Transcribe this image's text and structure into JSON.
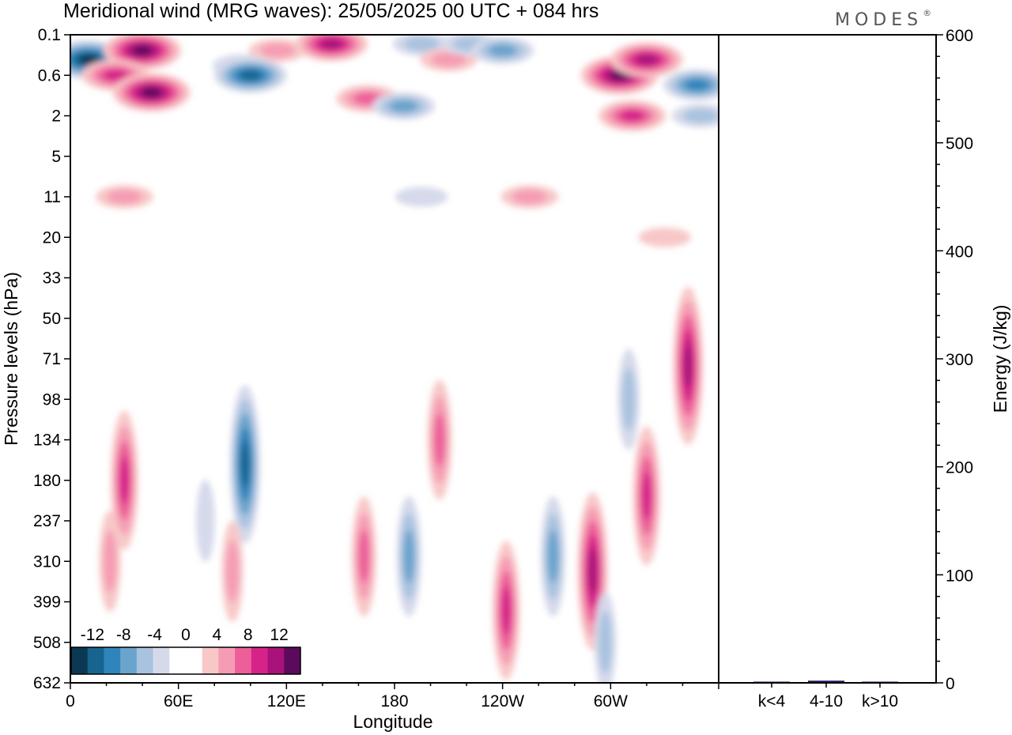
{
  "title": "Meridional wind (MRG waves):  25/05/2025  00 UTC  + 084 hrs",
  "brand": "MODES",
  "brand_mark": "®",
  "colors": {
    "neg12": "#0b3954",
    "neg10": "#17658f",
    "neg8": "#2f84bc",
    "neg6": "#6aa3cc",
    "neg4": "#a9c3df",
    "neg2": "#d5d9ea",
    "zero": "#ffffff",
    "pos2": "#f8c8c8",
    "pos4": "#f59cb4",
    "pos6": "#ec5f99",
    "pos8": "#d6238a",
    "pos10": "#a8127a",
    "pos12": "#5c0a5d",
    "bar": "#1a1a6a"
  },
  "chart_data": [
    {
      "type": "heatmap",
      "name": "Meridional wind (MRG waves)",
      "xlabel": "Longitude",
      "ylabel": "Pressure levels (hPa)",
      "x_ticks": [
        "0",
        "60E",
        "120E",
        "180",
        "120W",
        "60W"
      ],
      "y_ticks": [
        "0.1",
        "0.6",
        "2",
        "5",
        "11",
        "20",
        "33",
        "50",
        "71",
        "98",
        "134",
        "180",
        "237",
        "310",
        "399",
        "508",
        "632"
      ],
      "colorbar": {
        "labels": [
          "-12",
          "-8",
          "-4",
          "0",
          "4",
          "8",
          "12"
        ],
        "levels": [
          -12,
          -10,
          -8,
          -6,
          -4,
          -2,
          0,
          2,
          4,
          6,
          8,
          10,
          12
        ]
      },
      "features": [
        {
          "lon": 10,
          "level": "0.3",
          "value": -12
        },
        {
          "lon": 40,
          "level": "0.2",
          "value": 12
        },
        {
          "lon": 25,
          "level": "0.6",
          "value": 8
        },
        {
          "lon": 45,
          "level": "1",
          "value": 12
        },
        {
          "lon": 115,
          "level": "0.2",
          "value": 4
        },
        {
          "lon": 95,
          "level": "0.4",
          "value": -4
        },
        {
          "lon": 100,
          "level": "0.6",
          "value": -10
        },
        {
          "lon": 145,
          "level": "0.15",
          "value": 10
        },
        {
          "lon": 195,
          "level": "0.15",
          "value": -4
        },
        {
          "lon": 165,
          "level": "1.2",
          "value": 6
        },
        {
          "lon": 185,
          "level": "1.5",
          "value": -6
        },
        {
          "lon": 210,
          "level": "0.3",
          "value": 4
        },
        {
          "lon": 222,
          "level": "0.15",
          "value": -4
        },
        {
          "lon": 240,
          "level": "0.2",
          "value": -6
        },
        {
          "lon": 305,
          "level": "0.6",
          "value": 12
        },
        {
          "lon": 320,
          "level": "0.3",
          "value": 10
        },
        {
          "lon": 312,
          "level": "2",
          "value": 8
        },
        {
          "lon": 348,
          "level": "0.8",
          "value": -8
        },
        {
          "lon": 350,
          "level": "2",
          "value": -4
        },
        {
          "lon": 30,
          "level": "11",
          "value": 4
        },
        {
          "lon": 255,
          "level": "11",
          "value": 4
        },
        {
          "lon": 330,
          "level": "20",
          "value": 2
        },
        {
          "lon": 195,
          "level": "11",
          "value": -2
        },
        {
          "lon": 30,
          "level": "180",
          "value": 8
        },
        {
          "lon": 22,
          "level": "310",
          "value": 4
        },
        {
          "lon": 97,
          "level": "160",
          "value": -10
        },
        {
          "lon": 75,
          "level": "237",
          "value": -2
        },
        {
          "lon": 90,
          "level": "330",
          "value": 4
        },
        {
          "lon": 163,
          "level": "300",
          "value": 6
        },
        {
          "lon": 188,
          "level": "300",
          "value": -6
        },
        {
          "lon": 205,
          "level": "134",
          "value": 6
        },
        {
          "lon": 242,
          "level": "420",
          "value": 8
        },
        {
          "lon": 268,
          "level": "300",
          "value": -6
        },
        {
          "lon": 290,
          "level": "330",
          "value": 10
        },
        {
          "lon": 297,
          "level": "508",
          "value": -4
        },
        {
          "lon": 320,
          "level": "200",
          "value": 8
        },
        {
          "lon": 343,
          "level": "75",
          "value": 10
        },
        {
          "lon": 310,
          "level": "98",
          "value": -4
        }
      ]
    },
    {
      "type": "bar",
      "categories": [
        "k<4",
        "4-10",
        "k>10"
      ],
      "values": [
        0.5,
        2,
        0.3
      ],
      "ylabel": "Energy (J/kg)",
      "ylim": [
        0,
        600
      ],
      "y_ticks": [
        "0",
        "100",
        "200",
        "300",
        "400",
        "500",
        "600"
      ]
    }
  ]
}
